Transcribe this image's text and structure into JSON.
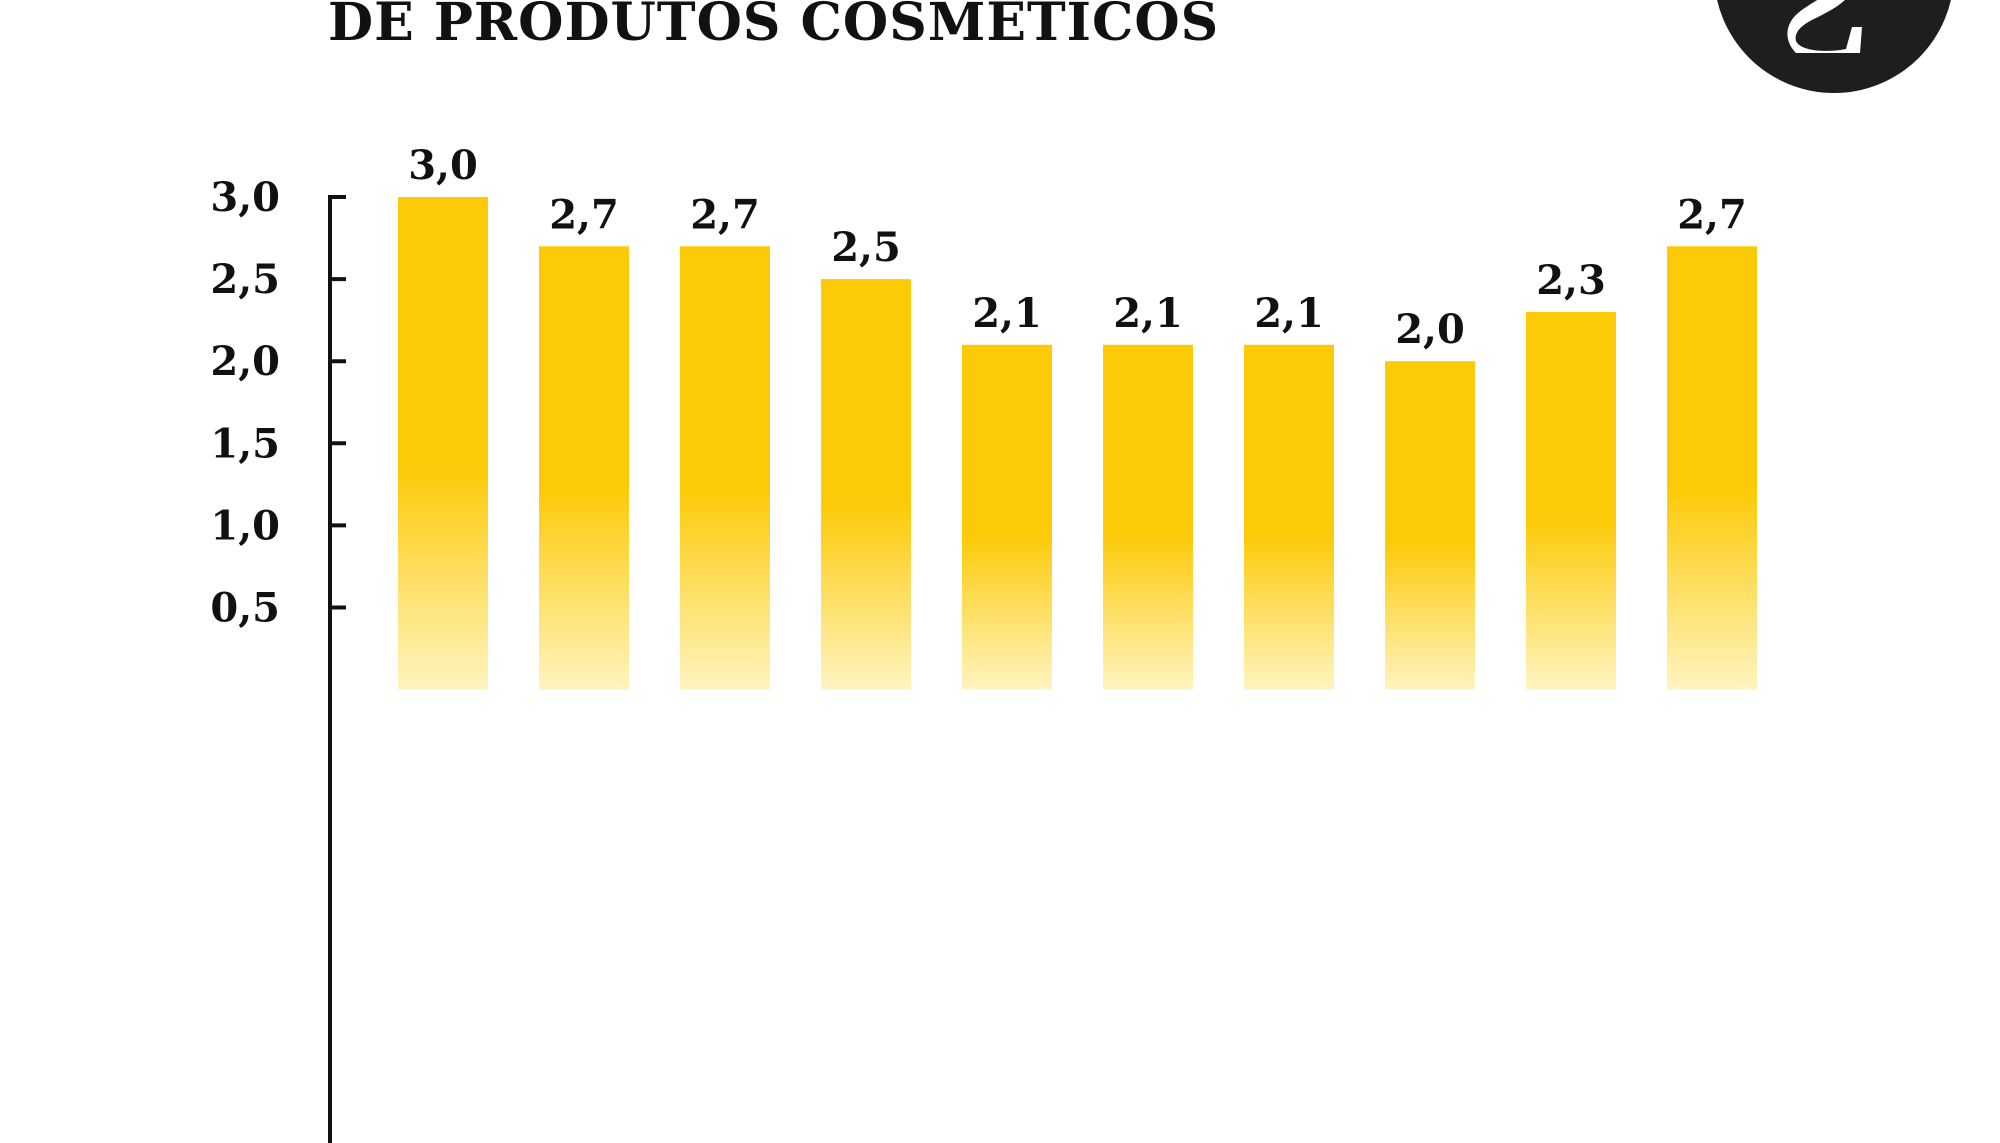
{
  "chart_data": {
    "type": "bar",
    "title": "DE PRODUTOS COSMÉTICOS",
    "categories": [
      "",
      "",
      "",
      "",
      "",
      "",
      "",
      "",
      "",
      ""
    ],
    "values": [
      3.0,
      2.7,
      2.7,
      2.5,
      2.1,
      2.1,
      2.1,
      2.0,
      2.3,
      2.7
    ],
    "value_labels": [
      "3,0",
      "2,7",
      "2,7",
      "2,5",
      "2,1",
      "2,1",
      "2,1",
      "2,0",
      "2,3",
      "2,7"
    ],
    "y_ticks": [
      0.5,
      1.0,
      1.5,
      2.0,
      2.5,
      3.0
    ],
    "y_tick_labels": [
      "0,5",
      "1,0",
      "1,5",
      "2,0",
      "2,5",
      "3,0"
    ],
    "xlabel": "",
    "ylabel": "",
    "ylim": [
      0,
      3.0
    ],
    "grid": false,
    "colors": {
      "bar_top": "#fdca08",
      "bar_bottom": "#fff4c0",
      "text": "#111111",
      "axis": "#111111",
      "logo": "#1e1e1e"
    }
  },
  "logo": {
    "icon": "circle-s-logo"
  }
}
